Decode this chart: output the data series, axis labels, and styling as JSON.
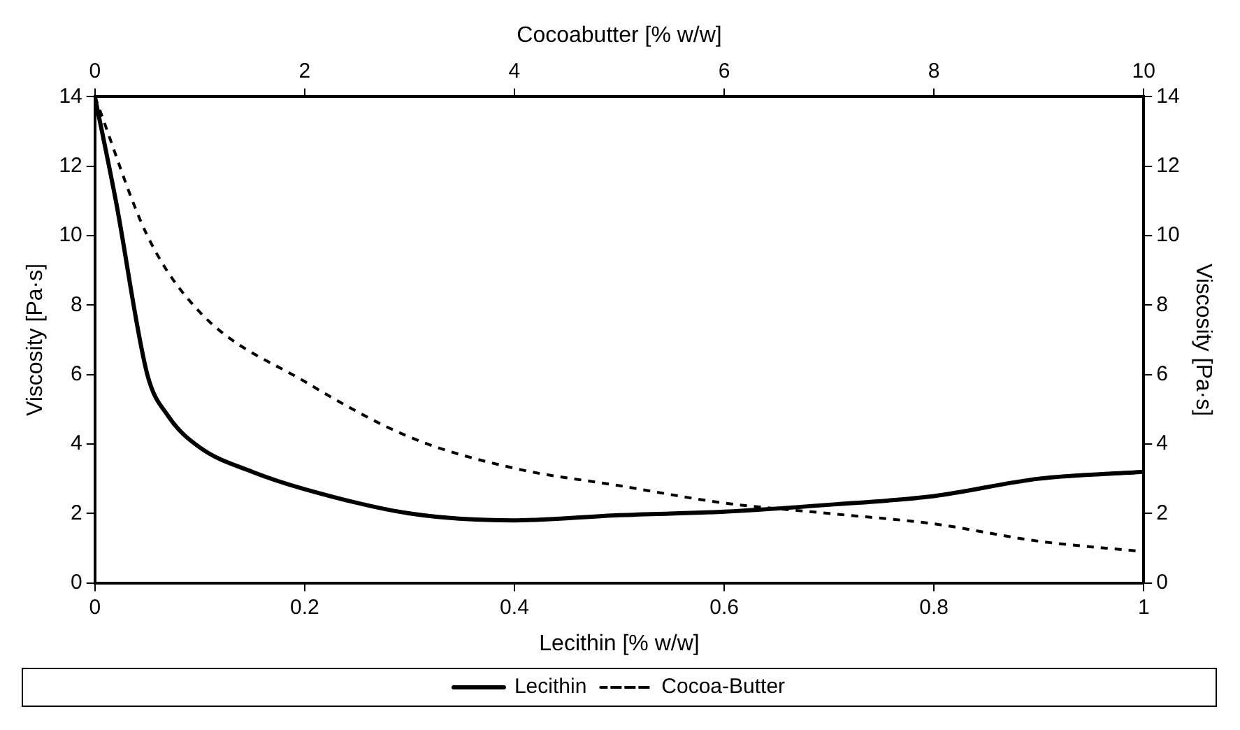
{
  "chart_data": {
    "type": "line",
    "xlabel": "Lecithin [% w/w]",
    "x2label": "Cocoabutter [% w/w]",
    "ylabel": "Viscosity [Pa·s]",
    "y2label": "Viscosity [Pa·s]",
    "xlim": [
      0,
      1
    ],
    "xticks": [
      0,
      0.2,
      0.4,
      0.6,
      0.8,
      1
    ],
    "x2lim": [
      0,
      10
    ],
    "x2ticks": [
      0,
      2,
      4,
      6,
      8,
      10
    ],
    "ylim": [
      0,
      14
    ],
    "yticks": [
      0,
      2,
      4,
      6,
      8,
      10,
      12,
      14
    ],
    "y2lim": [
      0,
      14
    ],
    "y2ticks": [
      0,
      2,
      4,
      6,
      8,
      10,
      12,
      14
    ],
    "grid": false,
    "legend": "bottom",
    "marker": "none",
    "series": [
      {
        "name": "Lecithin",
        "color": "#000000",
        "line_style": "solid",
        "x": [
          0,
          0.02,
          0.05,
          0.07,
          0.1,
          0.15,
          0.2,
          0.3,
          0.4,
          0.5,
          0.6,
          0.7,
          0.8,
          0.9,
          1
        ],
        "values": [
          14,
          11,
          6,
          4.8,
          3.9,
          3.2,
          2.7,
          2.0,
          1.8,
          1.95,
          2.05,
          2.25,
          2.5,
          3.0,
          3.2
        ]
      },
      {
        "name": "Cocoa-Butter",
        "color": "#000000",
        "line_style": "dashed",
        "axis": "x2",
        "x": [
          0,
          0.5,
          1,
          2,
          3,
          4,
          5,
          6,
          7,
          8,
          9,
          10
        ],
        "values": [
          14,
          10,
          7.8,
          5.8,
          4.2,
          3.3,
          2.8,
          2.3,
          2.0,
          1.7,
          1.2,
          0.9
        ]
      }
    ]
  }
}
